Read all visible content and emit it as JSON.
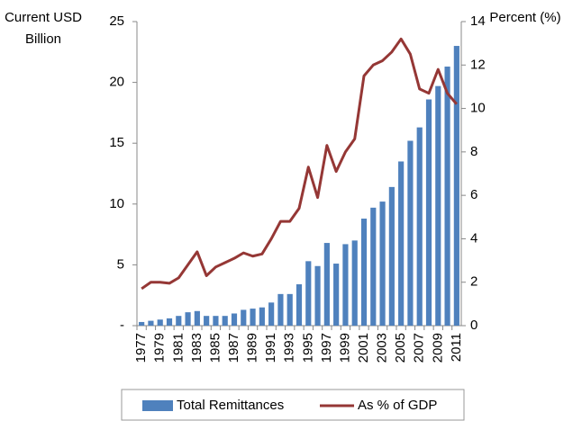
{
  "chart_data": {
    "type": "bar-line",
    "ylabel": [
      "Current USD",
      "Billion"
    ],
    "y2label": "Percent (%)",
    "categories": [
      "1977",
      null,
      "1979",
      null,
      "1981",
      null,
      "1983",
      null,
      "1985",
      null,
      "1987",
      null,
      "1989",
      null,
      "1991",
      null,
      "1993",
      null,
      "1995",
      null,
      "1997",
      null,
      "1999",
      null,
      "2001",
      null,
      "2003",
      null,
      "2005",
      null,
      "2007",
      null,
      "2009",
      null,
      "2011"
    ],
    "series": [
      {
        "name": "Total Remittances",
        "type": "bar",
        "color": "#4f81bd",
        "values": [
          0.3,
          0.4,
          0.5,
          0.6,
          0.8,
          1.1,
          1.2,
          0.8,
          0.8,
          0.8,
          1.0,
          1.3,
          1.4,
          1.5,
          1.9,
          2.6,
          2.6,
          3.4,
          5.3,
          4.9,
          6.8,
          5.1,
          6.7,
          7.0,
          8.8,
          9.7,
          10.2,
          11.4,
          13.5,
          15.2,
          16.3,
          18.6,
          19.7,
          21.3,
          23.0
        ]
      },
      {
        "name": "As % of GDP",
        "type": "line",
        "axis": "y2",
        "color": "#953735",
        "values": [
          1.7,
          2.0,
          2.0,
          1.95,
          2.2,
          2.8,
          3.4,
          2.3,
          2.7,
          2.9,
          3.1,
          3.35,
          3.2,
          3.3,
          4.0,
          4.8,
          4.8,
          5.4,
          7.3,
          5.9,
          8.3,
          7.1,
          8.0,
          8.6,
          11.5,
          12.0,
          12.2,
          12.6,
          13.2,
          12.5,
          10.9,
          10.7,
          11.8,
          10.7,
          10.2
        ]
      }
    ],
    "ylim": [
      0,
      25
    ],
    "yticks": [
      {
        "value": 0,
        "label": "-"
      },
      5,
      10,
      15,
      20,
      25
    ],
    "y2lim": [
      0,
      14
    ],
    "y2ticks": [
      0,
      2,
      4,
      6,
      8,
      10,
      12,
      14
    ],
    "legend": "bottom"
  }
}
